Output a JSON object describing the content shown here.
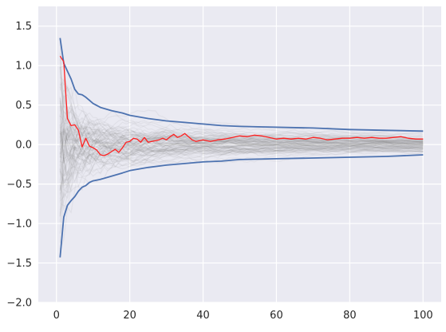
{
  "chart_data": {
    "type": "line",
    "title": "",
    "xlabel": "",
    "ylabel": "",
    "xlim": [
      -4.95,
      104.95
    ],
    "ylim": [
      -2.0,
      1.75
    ],
    "xticks": [
      0,
      20,
      40,
      60,
      80,
      100
    ],
    "yticks": [
      -2.0,
      -1.5,
      -1.0,
      -0.5,
      0.0,
      0.5,
      1.0,
      1.5
    ],
    "xtick_labels": [
      "0",
      "20",
      "40",
      "60",
      "80",
      "100"
    ],
    "ytick_labels": [
      "−2.0",
      "−1.5",
      "−1.0",
      "−0.5",
      "0.0",
      "0.5",
      "1.0",
      "1.5"
    ],
    "grid": true,
    "background_color": "#eaeaf2",
    "background_paths": {
      "count": 100,
      "color": "#808080",
      "description": "faint gray simulated running-mean paths"
    },
    "series": [
      {
        "color": "#4c72b0",
        "x": [
          1,
          2,
          3,
          4,
          5,
          6,
          7,
          8,
          9,
          10,
          12,
          15,
          18,
          20,
          25,
          30,
          35,
          40,
          45,
          50,
          60,
          70,
          80,
          90,
          100
        ],
        "y": [
          1.35,
          1.03,
          0.93,
          0.83,
          0.7,
          0.64,
          0.63,
          0.6,
          0.56,
          0.52,
          0.47,
          0.43,
          0.4,
          0.37,
          0.33,
          0.3,
          0.28,
          0.26,
          0.24,
          0.23,
          0.22,
          0.21,
          0.19,
          0.18,
          0.17
        ]
      },
      {
        "color": "#4c72b0",
        "x": [
          1,
          2,
          3,
          4,
          5,
          6,
          7,
          8,
          9,
          10,
          12,
          15,
          18,
          20,
          25,
          30,
          35,
          40,
          45,
          50,
          60,
          70,
          80,
          90,
          100
        ],
        "y": [
          -1.43,
          -0.92,
          -0.77,
          -0.71,
          -0.66,
          -0.59,
          -0.54,
          -0.52,
          -0.48,
          -0.46,
          -0.44,
          -0.4,
          -0.36,
          -0.33,
          -0.29,
          -0.26,
          -0.24,
          -0.22,
          -0.21,
          -0.19,
          -0.18,
          -0.17,
          -0.16,
          -0.15,
          -0.13
        ]
      },
      {
        "color": "#ff2020",
        "x": [
          1,
          2,
          3,
          4,
          5,
          6,
          7,
          8,
          9,
          10,
          11,
          12,
          13,
          14,
          15,
          16,
          17,
          18,
          19,
          20,
          21,
          22,
          23,
          24,
          25,
          26,
          27,
          28,
          29,
          30,
          31,
          32,
          33,
          34,
          35,
          36,
          37,
          38,
          39,
          40,
          42,
          44,
          46,
          48,
          50,
          52,
          54,
          56,
          58,
          60,
          62,
          64,
          66,
          68,
          70,
          72,
          74,
          76,
          78,
          80,
          82,
          84,
          86,
          88,
          90,
          92,
          94,
          96,
          98,
          100
        ],
        "y": [
          1.12,
          1.05,
          0.33,
          0.24,
          0.25,
          0.18,
          -0.03,
          0.08,
          -0.02,
          -0.04,
          -0.07,
          -0.13,
          -0.14,
          -0.12,
          -0.09,
          -0.06,
          -0.1,
          -0.04,
          0.03,
          0.04,
          0.08,
          0.07,
          0.03,
          0.09,
          0.03,
          0.04,
          0.05,
          0.06,
          0.08,
          0.06,
          0.1,
          0.13,
          0.09,
          0.11,
          0.14,
          0.1,
          0.06,
          0.04,
          0.05,
          0.06,
          0.04,
          0.06,
          0.07,
          0.09,
          0.11,
          0.1,
          0.12,
          0.11,
          0.09,
          0.07,
          0.08,
          0.07,
          0.08,
          0.07,
          0.09,
          0.08,
          0.06,
          0.07,
          0.08,
          0.08,
          0.09,
          0.08,
          0.09,
          0.08,
          0.08,
          0.09,
          0.1,
          0.08,
          0.07,
          0.07
        ]
      }
    ]
  }
}
